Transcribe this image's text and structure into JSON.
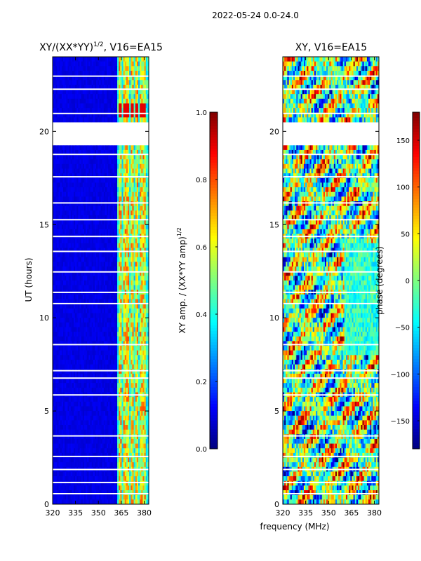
{
  "suptitle": "2022-05-24 0.0-24.0",
  "shared_xlabel": "frequency (MHz)",
  "colors": {
    "jet": [
      "#00007f",
      "#0000ff",
      "#007fff",
      "#00ffff",
      "#7fff7f",
      "#ffff00",
      "#ff7f00",
      "#ff0000",
      "#7f0000"
    ]
  },
  "chart_data": [
    {
      "type": "heatmap",
      "title_main": "XY/(XX*YY)",
      "title_exp": "1/2",
      "title_tail": ", V16=EA15",
      "xlabel": "",
      "ylabel": "UT (hours)",
      "xlim": [
        320,
        383
      ],
      "ylim": [
        0,
        24
      ],
      "xticks": [
        320,
        335,
        350,
        365,
        380
      ],
      "xtick_labels": [
        "320",
        "335",
        "350",
        "365",
        "380"
      ],
      "yticks": [
        0,
        5,
        10,
        15,
        20
      ],
      "ytick_labels": [
        "0",
        "5",
        "10",
        "15",
        "20"
      ],
      "gap_ut_ranges": [
        [
          19.3,
          20.6
        ]
      ],
      "bright_freq_columns_mhz": [
        364,
        367,
        369,
        372,
        375,
        378,
        380
      ],
      "colorbar": {
        "label_main": "XY amp. / (XX*YY amp)",
        "label_exp": "1/2",
        "range": [
          0.0,
          1.0
        ],
        "ticks": [
          0.0,
          0.2,
          0.4,
          0.6,
          0.8,
          1.0
        ],
        "tick_labels": [
          "0.0",
          "0.2",
          "0.4",
          "0.6",
          "0.8",
          "1.0"
        ]
      }
    },
    {
      "type": "heatmap",
      "title": "XY, V16=EA15",
      "xlabel": "",
      "ylabel": "",
      "xlim": [
        320,
        383
      ],
      "ylim": [
        0,
        24
      ],
      "xticks": [
        320,
        335,
        350,
        365,
        380
      ],
      "xtick_labels": [
        "320",
        "335",
        "350",
        "365",
        "380"
      ],
      "yticks": [
        0,
        5,
        10,
        15,
        20
      ],
      "ytick_labels": [
        "0",
        "5",
        "10",
        "15",
        "20"
      ],
      "gap_ut_ranges": [
        [
          19.3,
          20.6
        ]
      ],
      "colorbar": {
        "label": "phase (degrees)",
        "range": [
          -180,
          180
        ],
        "ticks": [
          -150,
          -100,
          -50,
          0,
          50,
          100,
          150
        ],
        "tick_labels": [
          "−150",
          "−100",
          "−50",
          "0",
          "50",
          "100",
          "150"
        ]
      }
    }
  ]
}
